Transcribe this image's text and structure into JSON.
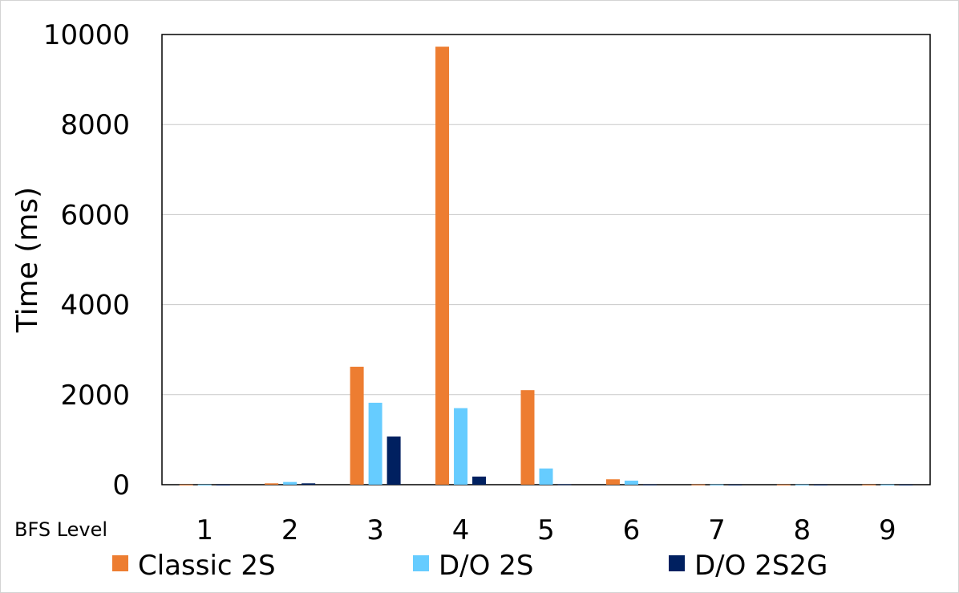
{
  "chart_data": {
    "type": "bar",
    "categories": [
      "1",
      "2",
      "3",
      "4",
      "5",
      "6",
      "7",
      "8",
      "9"
    ],
    "category_axis_title": "BFS Level",
    "ylabel": "Time (ms)",
    "xlabel": "",
    "ylim": [
      0,
      10000
    ],
    "yticks": [
      0,
      2000,
      4000,
      6000,
      8000,
      10000
    ],
    "grid": true,
    "legend_position": "bottom",
    "series": [
      {
        "name": "Classic 2S",
        "color": "#ED7D31",
        "values": [
          2,
          30,
          2620,
          9730,
          2100,
          120,
          5,
          3,
          3
        ]
      },
      {
        "name": "D/O 2S",
        "color": "#66CCFF",
        "values": [
          2,
          60,
          1820,
          1700,
          360,
          90,
          4,
          3,
          3
        ]
      },
      {
        "name": "D/O 2S2G",
        "color": "#002060",
        "values": [
          1,
          30,
          1070,
          180,
          10,
          5,
          2,
          2,
          2
        ]
      }
    ]
  }
}
